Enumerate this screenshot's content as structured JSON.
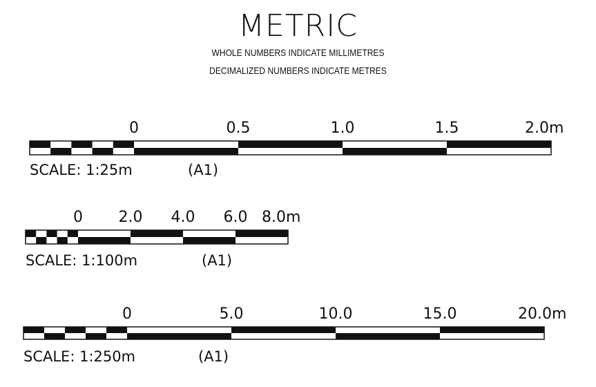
{
  "header": {
    "title": "METRIC",
    "subtitle1": "WHOLE NUMBERS INDICATE MILLIMETRES",
    "subtitle2": "DECIMALIZED NUMBERS INDICATE METRES"
  },
  "scales": [
    {
      "ticks": [
        "0",
        "0.5",
        "1.0",
        "1.5",
        "2.0m"
      ],
      "caption": "SCALE: 1:25m",
      "paper": "(A1)"
    },
    {
      "ticks": [
        "0",
        "2.0",
        "4.0",
        "6.0",
        "8.0m"
      ],
      "caption": "SCALE: 1:100m",
      "paper": "(A1)"
    },
    {
      "ticks": [
        "0",
        "5.0",
        "10.0",
        "15.0",
        "20.0m"
      ],
      "caption": "SCALE: 1:250m",
      "paper": "(A1)"
    }
  ]
}
